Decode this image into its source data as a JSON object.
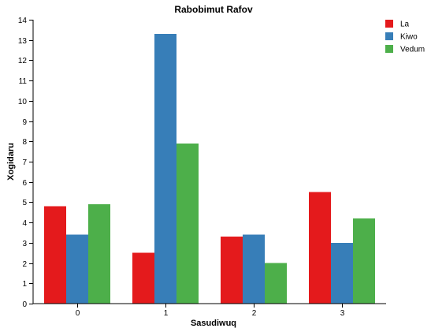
{
  "chart_data": {
    "type": "bar",
    "title": "Rabobimut Rafov",
    "xlabel": "Sasudiwuq",
    "ylabel": "Xogidaru",
    "categories": [
      "0",
      "1",
      "2",
      "3"
    ],
    "series": [
      {
        "name": "La",
        "color": "#e41a1c",
        "values": [
          4.8,
          2.5,
          3.3,
          5.5
        ]
      },
      {
        "name": "Kiwo",
        "color": "#377eb8",
        "values": [
          3.4,
          13.3,
          3.4,
          3.0
        ]
      },
      {
        "name": "Vedum",
        "color": "#4daf4a",
        "values": [
          4.9,
          7.9,
          2.0,
          4.2
        ]
      }
    ],
    "ylim": [
      0,
      14
    ],
    "yticks": [
      "0",
      "1",
      "2",
      "3",
      "4",
      "5",
      "6",
      "7",
      "8",
      "9",
      "10",
      "11",
      "12",
      "13",
      "14"
    ],
    "grid": false,
    "legend_position": "top-right"
  }
}
